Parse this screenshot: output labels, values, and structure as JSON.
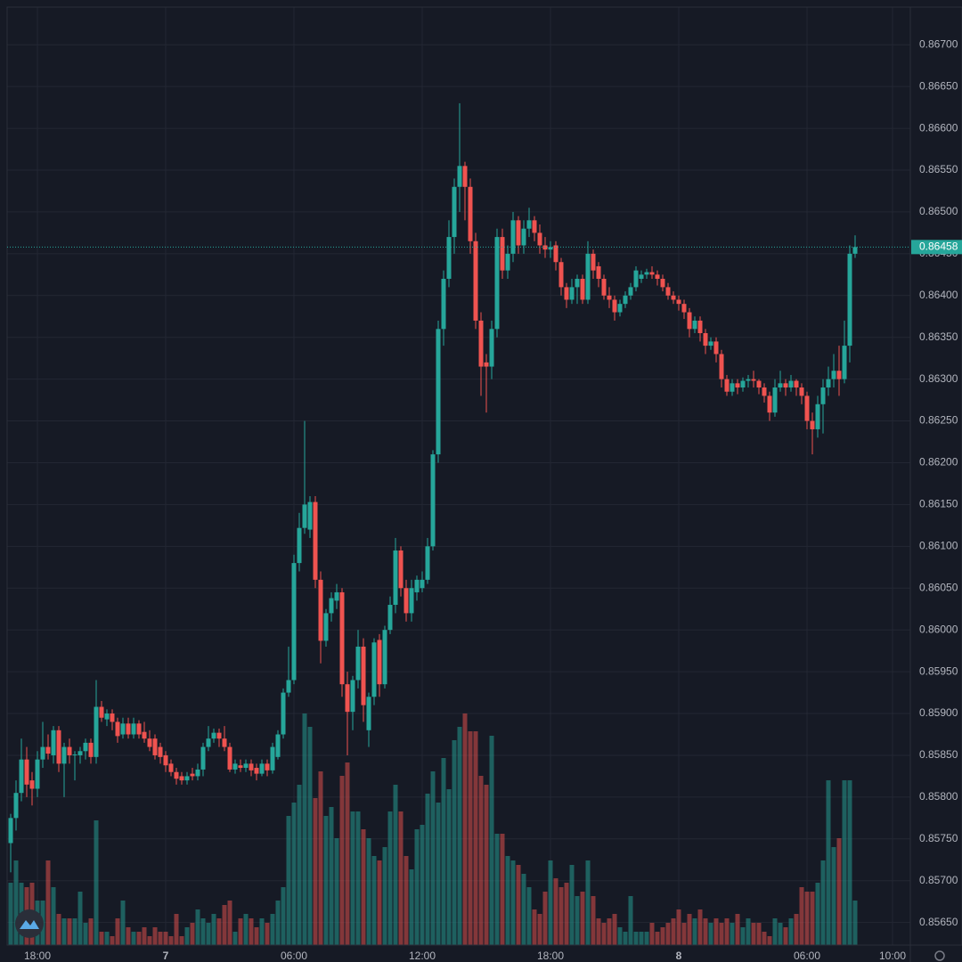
{
  "chart_data": {
    "type": "candlestick",
    "x": [
      -1.25,
      -1,
      -0.75,
      -0.5,
      -0.25,
      0,
      0.25,
      0.5,
      0.75,
      1,
      1.25,
      1.5,
      1.75,
      2,
      2.25,
      2.5,
      2.75,
      3,
      3.25,
      3.5,
      3.75,
      4,
      4.25,
      4.5,
      4.75,
      5,
      5.25,
      5.5,
      5.75,
      6,
      6.25,
      6.5,
      6.75,
      7,
      7.25,
      7.5,
      7.75,
      8,
      8.25,
      8.5,
      8.75,
      9,
      9.25,
      9.5,
      9.75,
      10,
      10.25,
      10.5,
      10.75,
      11,
      11.25,
      11.5,
      11.75,
      12,
      12.25,
      12.5,
      12.75,
      13,
      13.25,
      13.5,
      13.75,
      14,
      14.25,
      14.5,
      14.75,
      15,
      15.25,
      15.5,
      15.75,
      16,
      16.25,
      16.5,
      16.75,
      17,
      17.25,
      17.5,
      17.75,
      18,
      18.25,
      18.5,
      18.75,
      19,
      19.25,
      19.5,
      19.75,
      20,
      20.25,
      20.5,
      20.75,
      21,
      21.25,
      21.5,
      21.75,
      22,
      22.25,
      22.5,
      22.75,
      23,
      23.25,
      23.5,
      23.75,
      24,
      24.25,
      24.5,
      24.75,
      25,
      25.25,
      25.5,
      25.75,
      26,
      26.25,
      26.5,
      26.75,
      27,
      27.25,
      27.5,
      27.75,
      28,
      28.25,
      28.5,
      28.75,
      29,
      29.25,
      29.5,
      29.75,
      30,
      30.25,
      30.5,
      30.75,
      31,
      31.25,
      31.5,
      31.75,
      32,
      32.25,
      32.5,
      32.75,
      33,
      33.25,
      33.5,
      33.75,
      34,
      34.25,
      34.5,
      34.75,
      35,
      35.25,
      35.5,
      35.75,
      36,
      36.25,
      36.5,
      36.75,
      37,
      37.25,
      37.5,
      37.75,
      38,
      38.25
    ],
    "open": [
      0.85745,
      0.85775,
      0.85805,
      0.85845,
      0.8582,
      0.8581,
      0.85845,
      0.8586,
      0.8585,
      0.8588,
      0.8584,
      0.8586,
      0.8585,
      0.8585,
      0.85855,
      0.85865,
      0.85848,
      0.85908,
      0.85893,
      0.859,
      0.8589,
      0.85875,
      0.85888,
      0.85875,
      0.85888,
      0.85878,
      0.8587,
      0.8587,
      0.8586,
      0.8585,
      0.8584,
      0.8583,
      0.85825,
      0.8582,
      0.85828,
      0.85825,
      0.85833,
      0.8586,
      0.8587,
      0.85877,
      0.8587,
      0.8586,
      0.85833,
      0.85838,
      0.85835,
      0.8584,
      0.85835,
      0.85828,
      0.8584,
      0.85832,
      0.85848,
      0.85875,
      0.85925,
      0.8594,
      0.8608,
      0.86122,
      0.8612,
      0.86153,
      0.8606,
      0.85987,
      0.8602,
      0.86035,
      0.86045,
      0.85935,
      0.85902,
      0.8594,
      0.8598,
      0.8588,
      0.8592,
      0.85988,
      0.85935,
      0.86,
      0.8603,
      0.86095,
      0.8605,
      0.8602,
      0.86045,
      0.8605,
      0.8606,
      0.861,
      0.8621,
      0.8636,
      0.8642,
      0.8647,
      0.8653,
      0.86555,
      0.8653,
      0.86465,
      0.8637,
      0.8632,
      0.86315,
      0.8636,
      0.8647,
      0.8643,
      0.8645,
      0.8649,
      0.8646,
      0.8648,
      0.8649,
      0.86475,
      0.8646,
      0.86455,
      0.8646,
      0.8644,
      0.8641,
      0.86395,
      0.8641,
      0.8642,
      0.86395,
      0.8645,
      0.86435,
      0.8642,
      0.864,
      0.86395,
      0.8638,
      0.8639,
      0.864,
      0.8641,
      0.8642,
      0.86425,
      0.86428,
      0.86425,
      0.8642,
      0.8641,
      0.864,
      0.86395,
      0.8639,
      0.8638,
      0.8636,
      0.8637,
      0.86355,
      0.8634,
      0.86345,
      0.8633,
      0.863,
      0.86285,
      0.86295,
      0.8629,
      0.86298,
      0.863,
      0.86298,
      0.8629,
      0.8628,
      0.8626,
      0.8629,
      0.86295,
      0.8629,
      0.86298,
      0.8629,
      0.8628,
      0.8625,
      0.8624,
      0.8627,
      0.8629,
      0.863,
      0.8631,
      0.863,
      0.8634,
      0.8645
    ],
    "high": [
      0.8578,
      0.8582,
      0.8587,
      0.8586,
      0.8583,
      0.85855,
      0.8589,
      0.85875,
      0.85885,
      0.85885,
      0.85865,
      0.8587,
      0.85855,
      0.8586,
      0.8587,
      0.8587,
      0.8594,
      0.85915,
      0.85905,
      0.85905,
      0.85895,
      0.85895,
      0.85895,
      0.85895,
      0.85892,
      0.8589,
      0.8588,
      0.85875,
      0.85865,
      0.85855,
      0.85845,
      0.85835,
      0.8583,
      0.8583,
      0.85835,
      0.8584,
      0.85865,
      0.85885,
      0.85882,
      0.85882,
      0.85885,
      0.85865,
      0.85845,
      0.85845,
      0.85845,
      0.85845,
      0.8584,
      0.85845,
      0.85845,
      0.85865,
      0.8588,
      0.8593,
      0.8598,
      0.8609,
      0.8614,
      0.8625,
      0.8616,
      0.8616,
      0.8607,
      0.86025,
      0.86045,
      0.86055,
      0.8605,
      0.8595,
      0.85945,
      0.86,
      0.8599,
      0.85925,
      0.8599,
      0.85995,
      0.86005,
      0.8604,
      0.8611,
      0.861,
      0.8606,
      0.8606,
      0.86065,
      0.8607,
      0.8611,
      0.86215,
      0.8637,
      0.8643,
      0.8649,
      0.8654,
      0.8663,
      0.8656,
      0.8654,
      0.86475,
      0.8638,
      0.8633,
      0.8637,
      0.8648,
      0.8648,
      0.8646,
      0.865,
      0.86495,
      0.8649,
      0.86505,
      0.86495,
      0.86485,
      0.8647,
      0.86465,
      0.86465,
      0.86445,
      0.86415,
      0.8642,
      0.86425,
      0.86425,
      0.86465,
      0.86455,
      0.8644,
      0.86425,
      0.8641,
      0.864,
      0.86395,
      0.86405,
      0.86415,
      0.86435,
      0.8643,
      0.86432,
      0.86435,
      0.8643,
      0.86425,
      0.86415,
      0.86405,
      0.864,
      0.86395,
      0.86385,
      0.86375,
      0.86375,
      0.8636,
      0.8635,
      0.8635,
      0.86335,
      0.86305,
      0.863,
      0.863,
      0.86302,
      0.86305,
      0.8631,
      0.863,
      0.86295,
      0.86285,
      0.863,
      0.8631,
      0.863,
      0.86305,
      0.863,
      0.86295,
      0.86285,
      0.8626,
      0.8628,
      0.863,
      0.86315,
      0.8633,
      0.8634,
      0.8637,
      0.8646,
      0.86472
    ],
    "low": [
      0.8571,
      0.8576,
      0.85795,
      0.858,
      0.8579,
      0.858,
      0.85835,
      0.85845,
      0.8584,
      0.8583,
      0.858,
      0.8584,
      0.8582,
      0.8584,
      0.85845,
      0.8584,
      0.8584,
      0.8589,
      0.85885,
      0.8588,
      0.85865,
      0.8587,
      0.8587,
      0.8587,
      0.8587,
      0.85865,
      0.85855,
      0.85845,
      0.8584,
      0.8583,
      0.85825,
      0.85815,
      0.85815,
      0.85815,
      0.8582,
      0.8582,
      0.85825,
      0.85855,
      0.85865,
      0.8586,
      0.85855,
      0.8583,
      0.85828,
      0.8583,
      0.8583,
      0.85825,
      0.8582,
      0.85825,
      0.85825,
      0.85828,
      0.85845,
      0.8587,
      0.8592,
      0.85935,
      0.8607,
      0.86115,
      0.8611,
      0.8605,
      0.8596,
      0.8598,
      0.8601,
      0.86025,
      0.8592,
      0.8585,
      0.8588,
      0.8593,
      0.8589,
      0.8586,
      0.8591,
      0.8592,
      0.8593,
      0.85995,
      0.8602,
      0.8604,
      0.8601,
      0.8601,
      0.86035,
      0.86045,
      0.86055,
      0.86095,
      0.862,
      0.8634,
      0.8641,
      0.8645,
      0.865,
      0.8649,
      0.8645,
      0.8636,
      0.8628,
      0.8626,
      0.863,
      0.8635,
      0.8642,
      0.8642,
      0.8644,
      0.8645,
      0.8645,
      0.8647,
      0.86465,
      0.8645,
      0.86445,
      0.86445,
      0.8643,
      0.864,
      0.86385,
      0.8639,
      0.8639,
      0.8639,
      0.8639,
      0.8642,
      0.8641,
      0.86395,
      0.86385,
      0.8637,
      0.86375,
      0.86385,
      0.86395,
      0.86405,
      0.86415,
      0.8642,
      0.8642,
      0.86412,
      0.86405,
      0.86395,
      0.8639,
      0.86382,
      0.86372,
      0.8635,
      0.86355,
      0.86345,
      0.8633,
      0.86335,
      0.8632,
      0.8629,
      0.8628,
      0.8628,
      0.86282,
      0.86285,
      0.8629,
      0.8629,
      0.86282,
      0.86272,
      0.8625,
      0.86255,
      0.86285,
      0.8628,
      0.86285,
      0.8628,
      0.8627,
      0.8624,
      0.8621,
      0.8623,
      0.86235,
      0.8628,
      0.8629,
      0.8628,
      0.86295,
      0.8632,
      0.86445
    ],
    "close": [
      0.85775,
      0.85805,
      0.85845,
      0.85815,
      0.8581,
      0.85845,
      0.8586,
      0.85852,
      0.8588,
      0.8584,
      0.8586,
      0.8585,
      0.85851,
      0.85855,
      0.85865,
      0.85848,
      0.85908,
      0.85895,
      0.859,
      0.8589,
      0.85873,
      0.85888,
      0.85875,
      0.85888,
      0.85875,
      0.8587,
      0.8586,
      0.8585,
      0.85848,
      0.85838,
      0.8583,
      0.85822,
      0.8582,
      0.85825,
      0.85825,
      0.85833,
      0.8586,
      0.8587,
      0.85877,
      0.8587,
      0.8586,
      0.85833,
      0.8584,
      0.85835,
      0.8584,
      0.85832,
      0.85828,
      0.8584,
      0.85832,
      0.8586,
      0.85875,
      0.85925,
      0.8594,
      0.8608,
      0.86122,
      0.8615,
      0.86153,
      0.8606,
      0.85987,
      0.8602,
      0.86038,
      0.86045,
      0.85935,
      0.85902,
      0.8594,
      0.8598,
      0.8591,
      0.8592,
      0.85985,
      0.85935,
      0.86,
      0.8603,
      0.86095,
      0.8605,
      0.8602,
      0.8605,
      0.8606,
      0.8606,
      0.861,
      0.8621,
      0.8636,
      0.8642,
      0.8647,
      0.8653,
      0.86555,
      0.8653,
      0.86465,
      0.8637,
      0.86315,
      0.86315,
      0.8636,
      0.8647,
      0.8643,
      0.8645,
      0.8649,
      0.8646,
      0.8648,
      0.8649,
      0.86475,
      0.8646,
      0.86455,
      0.86458,
      0.8644,
      0.8641,
      0.86395,
      0.8641,
      0.8642,
      0.86395,
      0.8645,
      0.8643,
      0.8642,
      0.864,
      0.86395,
      0.8638,
      0.8639,
      0.864,
      0.8641,
      0.8643,
      0.86425,
      0.86428,
      0.86425,
      0.8642,
      0.8641,
      0.864,
      0.86395,
      0.8639,
      0.8638,
      0.8636,
      0.8637,
      0.86355,
      0.8634,
      0.86345,
      0.8633,
      0.863,
      0.86285,
      0.86295,
      0.8629,
      0.86298,
      0.863,
      0.86298,
      0.8629,
      0.8628,
      0.8626,
      0.8629,
      0.86295,
      0.8629,
      0.86298,
      0.8629,
      0.8628,
      0.8625,
      0.8624,
      0.8627,
      0.8629,
      0.863,
      0.8631,
      0.863,
      0.8634,
      0.8645,
      0.86458
    ],
    "volume": [
      70,
      95,
      70,
      65,
      70,
      50,
      50,
      95,
      65,
      35,
      30,
      30,
      30,
      60,
      25,
      30,
      140,
      15,
      15,
      10,
      30,
      50,
      20,
      15,
      15,
      20,
      10,
      20,
      15,
      15,
      10,
      35,
      10,
      20,
      25,
      40,
      30,
      25,
      35,
      30,
      45,
      50,
      15,
      30,
      35,
      30,
      20,
      30,
      25,
      35,
      50,
      65,
      145,
      160,
      180,
      260,
      245,
      165,
      195,
      145,
      155,
      120,
      190,
      205,
      150,
      150,
      130,
      120,
      100,
      95,
      110,
      150,
      180,
      150,
      100,
      85,
      130,
      135,
      170,
      195,
      160,
      210,
      175,
      230,
      245,
      260,
      240,
      240,
      190,
      180,
      235,
      125,
      125,
      100,
      95,
      90,
      80,
      65,
      40,
      35,
      60,
      95,
      75,
      65,
      70,
      90,
      55,
      60,
      95,
      55,
      30,
      25,
      30,
      35,
      20,
      15,
      55,
      15,
      15,
      15,
      25,
      15,
      20,
      25,
      30,
      40,
      25,
      35,
      30,
      40,
      30,
      25,
      30,
      25,
      30,
      25,
      35,
      20,
      30,
      25,
      25,
      15,
      10,
      30,
      25,
      20,
      30,
      35,
      65,
      60,
      60,
      70,
      95,
      185,
      110,
      120,
      185,
      185,
      50
    ],
    "colors": {
      "up": "#26a69a",
      "down": "#ef5350"
    },
    "xlim": [
      -1.4167,
      40.8333
    ],
    "xticks": [
      {
        "value": 0,
        "label": "18:00"
      },
      {
        "value": 6,
        "label": "7"
      },
      {
        "value": 12,
        "label": "06:00"
      },
      {
        "value": 18,
        "label": "12:00"
      },
      {
        "value": 24,
        "label": "18:00"
      },
      {
        "value": 30,
        "label": "8"
      },
      {
        "value": 36,
        "label": "06:00"
      },
      {
        "value": 40,
        "label": "10:00"
      }
    ],
    "ylim": [
      0.85623,
      0.86745
    ],
    "yticks": [
      {
        "value": 0.8565,
        "label": "0.85650"
      },
      {
        "value": 0.857,
        "label": "0.85700"
      },
      {
        "value": 0.8575,
        "label": "0.85750"
      },
      {
        "value": 0.858,
        "label": "0.85800"
      },
      {
        "value": 0.8585,
        "label": "0.85850"
      },
      {
        "value": 0.859,
        "label": "0.85900"
      },
      {
        "value": 0.8595,
        "label": "0.85950"
      },
      {
        "value": 0.86,
        "label": "0.86000"
      },
      {
        "value": 0.8605,
        "label": "0.86050"
      },
      {
        "value": 0.861,
        "label": "0.86100"
      },
      {
        "value": 0.8615,
        "label": "0.86150"
      },
      {
        "value": 0.862,
        "label": "0.86200"
      },
      {
        "value": 0.8625,
        "label": "0.86250"
      },
      {
        "value": 0.863,
        "label": "0.86300"
      },
      {
        "value": 0.8635,
        "label": "0.86350"
      },
      {
        "value": 0.864,
        "label": "0.86400"
      },
      {
        "value": 0.8645,
        "label": "0.86450"
      },
      {
        "value": 0.865,
        "label": "0.86500"
      },
      {
        "value": 0.8655,
        "label": "0.86550"
      },
      {
        "value": 0.866,
        "label": "0.86600"
      },
      {
        "value": 0.8665,
        "label": "0.86650"
      },
      {
        "value": 0.867,
        "label": "0.86700"
      }
    ],
    "volume_lim": [
      0,
      1053
    ],
    "last_price": {
      "value": 0.86458,
      "label": "0.86458"
    },
    "grid": true
  }
}
